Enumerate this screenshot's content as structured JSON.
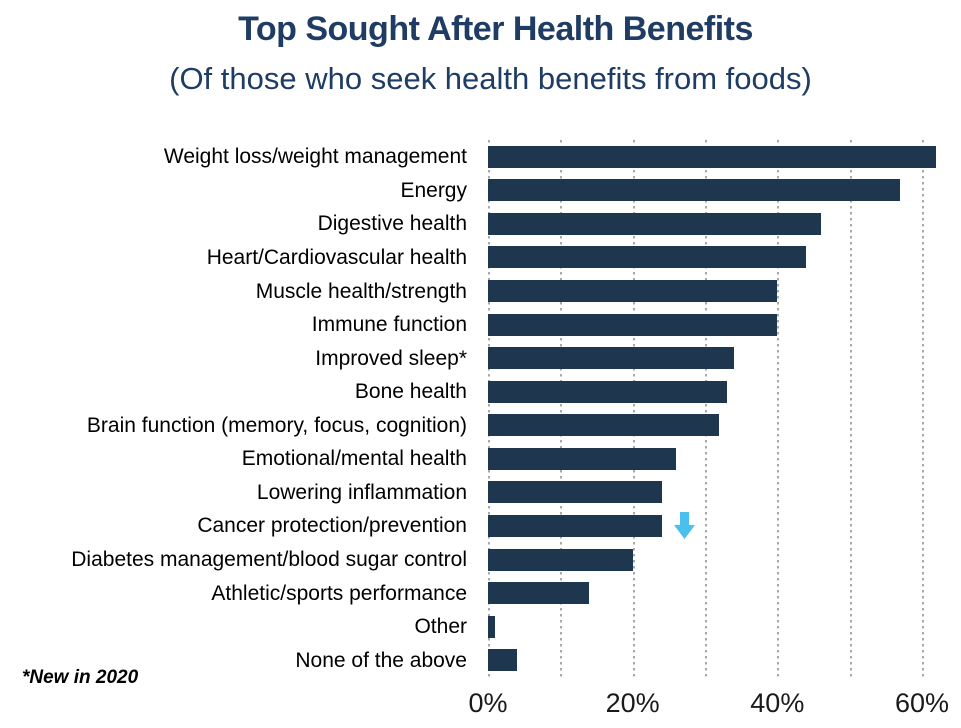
{
  "header": {
    "title": "Top Sought After Health Benefits",
    "subtitle": "(Of those who seek health benefits from foods)"
  },
  "footnote": "*New in 2020",
  "colors": {
    "title_text": "#1F3C64",
    "bar": "#1F374E",
    "arrow": "#4BC0EC",
    "gridline": "#A9A9A9",
    "category_label": "#000000",
    "tick_label": "#1A1A1A",
    "background": "#FFFFFF"
  },
  "chart_data": {
    "type": "bar",
    "orientation": "horizontal",
    "title": "Top Sought After Health Benefits",
    "subtitle": "(Of those who seek health benefits from foods)",
    "unit": "%",
    "categories": [
      "Weight loss/weight management",
      "Energy",
      "Digestive health",
      "Heart/Cardiovascular health",
      "Muscle health/strength",
      "Immune function",
      "Improved sleep*",
      "Bone health",
      "Brain function (memory, focus, cognition)",
      "Emotional/mental health",
      "Lowering inflammation",
      "Cancer protection/prevention",
      "Diabetes management/blood sugar control",
      "Athletic/sports performance",
      "Other",
      "None of the above"
    ],
    "values": [
      62,
      57,
      46,
      44,
      40,
      40,
      34,
      33,
      32,
      26,
      24,
      24,
      20,
      14,
      1,
      4
    ],
    "xlim": [
      0,
      65
    ],
    "grid": "vertical-dotted",
    "grid_interval_pct": 10,
    "grid_max_pct": 60,
    "x_tick_labels": [
      "0%",
      "20%",
      "40%",
      "60%"
    ],
    "x_tick_values": [
      0,
      20,
      40,
      60
    ],
    "legend": "none",
    "value_labels_shown": false,
    "annotations": [
      {
        "category": "Cancer protection/prevention",
        "category_index": 11,
        "marker": "down-arrow",
        "meaning": "decrease vs prior year",
        "color": "#4BC0EC"
      }
    ],
    "footnote": "*New in 2020"
  }
}
